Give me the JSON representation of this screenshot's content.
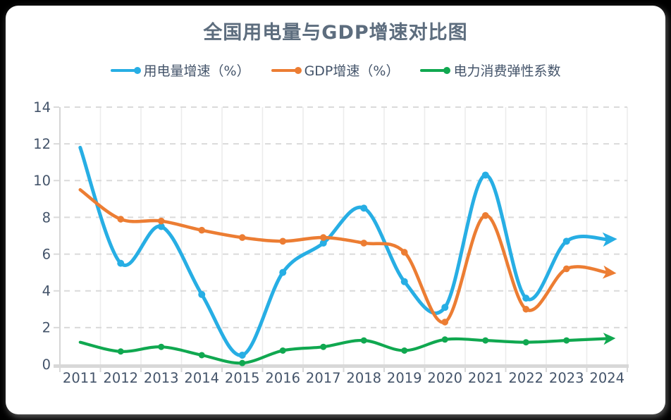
{
  "page": {
    "background_color": "#000000",
    "card_color": "#ffffff"
  },
  "chart_data": {
    "type": "line",
    "title": "全国用电量与GDP增速对比图",
    "title_color": "#5D6D7E",
    "axis_text_color": "#44546A",
    "categories": [
      "2011",
      "2012",
      "2013",
      "2014",
      "2015",
      "2016",
      "2017",
      "2018",
      "2019",
      "2020",
      "2021",
      "2022",
      "2023",
      "2024"
    ],
    "ylim": [
      0,
      14
    ],
    "ytick_step": 2,
    "yticks": [
      0,
      2,
      4,
      6,
      8,
      10,
      12,
      14
    ],
    "grid": true,
    "legend_position": "top",
    "smooth": true,
    "series": [
      {
        "id": "electricity-growth",
        "name": "用电量增速（%）",
        "color": "#27AEE4",
        "values": [
          11.8,
          5.5,
          7.5,
          3.8,
          0.5,
          5.0,
          6.6,
          8.5,
          4.5,
          3.1,
          10.3,
          3.6,
          6.7,
          6.8
        ],
        "ends_with_arrow": true,
        "last_value_is_projection": true
      },
      {
        "id": "gdp-growth",
        "name": "GDP增速（%）",
        "color": "#EC7D33",
        "values": [
          9.5,
          7.9,
          7.8,
          7.3,
          6.9,
          6.7,
          6.9,
          6.6,
          6.1,
          2.3,
          8.1,
          3.0,
          5.2,
          5.0
        ],
        "ends_with_arrow": true,
        "last_value_is_projection": true
      },
      {
        "id": "elasticity",
        "name": "电力消费弹性系数",
        "color": "#10A850",
        "values": [
          1.2,
          0.7,
          0.95,
          0.5,
          0.07,
          0.75,
          0.95,
          1.3,
          0.75,
          1.35,
          1.3,
          1.2,
          1.3,
          1.4
        ],
        "ends_with_arrow": true,
        "last_value_is_projection": true
      }
    ]
  }
}
